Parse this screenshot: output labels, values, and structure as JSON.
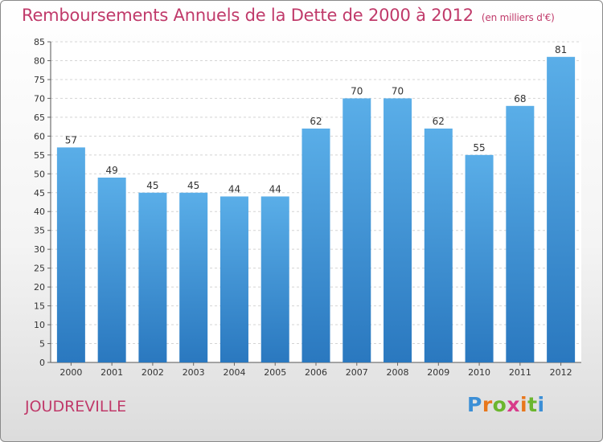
{
  "header": {
    "title": "Remboursements Annuels de la Dette de 2000 à 2012",
    "subtitle": "(en milliers d'€)"
  },
  "footer": {
    "town": "JOUDREVILLE",
    "logo": "Proxiti"
  },
  "colors": {
    "title": "#c03a6a",
    "bar_top": "#5aaee8",
    "bar_bottom": "#2a78bf",
    "logo_letters": [
      "#3c8fd6",
      "#e8771c",
      "#6bb62e",
      "#d83a8a",
      "#e8771c",
      "#6bb62e",
      "#3c8fd6"
    ]
  },
  "chart_data": {
    "type": "bar",
    "categories": [
      "2000",
      "2001",
      "2002",
      "2003",
      "2004",
      "2005",
      "2006",
      "2007",
      "2008",
      "2009",
      "2010",
      "2011",
      "2012"
    ],
    "values": [
      57,
      49,
      45,
      45,
      44,
      44,
      62,
      70,
      70,
      62,
      55,
      68,
      81
    ],
    "ylim": [
      0,
      85
    ],
    "ytick_step": 5,
    "grid": true
  }
}
